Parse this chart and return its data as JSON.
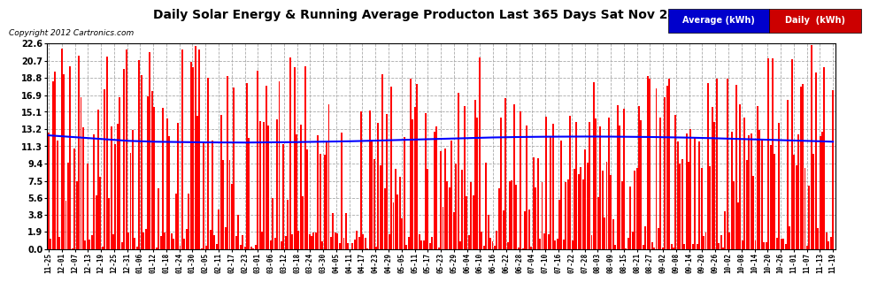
{
  "title": "Daily Solar Energy & Running Average Producton Last 365 Days Sat Nov 24 07:10",
  "copyright": "Copyright 2012 Cartronics.com",
  "yticks": [
    0.0,
    1.9,
    3.8,
    5.6,
    7.5,
    9.4,
    11.3,
    13.2,
    15.1,
    16.9,
    18.8,
    20.7,
    22.6
  ],
  "ylim": [
    0.0,
    22.6
  ],
  "bar_color": "#ff0000",
  "avg_color": "#0000ff",
  "background_color": "#ffffff",
  "plot_bg_color": "#ffffff",
  "legend_avg_bg": "#0000cc",
  "legend_daily_bg": "#cc0000",
  "legend_avg_text": "Average (kWh)",
  "legend_daily_text": "Daily  (kWh)",
  "num_bars": 365,
  "x_labels": [
    "11-25",
    "12-01",
    "12-07",
    "12-13",
    "12-19",
    "12-25",
    "12-31",
    "01-06",
    "01-12",
    "01-18",
    "01-24",
    "01-30",
    "02-05",
    "02-11",
    "02-17",
    "02-23",
    "03-01",
    "03-06",
    "03-12",
    "03-18",
    "03-24",
    "03-30",
    "04-05",
    "04-11",
    "04-17",
    "04-23",
    "04-29",
    "05-05",
    "05-11",
    "05-17",
    "05-23",
    "05-29",
    "06-04",
    "06-10",
    "06-16",
    "06-22",
    "06-28",
    "07-04",
    "07-10",
    "07-16",
    "07-22",
    "07-28",
    "08-03",
    "08-09",
    "08-15",
    "08-21",
    "08-27",
    "09-02",
    "09-08",
    "09-14",
    "09-20",
    "09-26",
    "10-02",
    "10-08",
    "10-14",
    "10-20",
    "10-26",
    "11-01",
    "11-07",
    "11-13",
    "11-19"
  ],
  "avg_line_values": [
    12.5,
    12.4,
    12.3,
    12.2,
    12.1,
    12.0,
    11.9,
    11.85,
    11.8,
    11.78,
    11.76,
    11.74,
    11.73,
    11.72,
    11.71,
    11.71,
    11.72,
    11.73,
    11.74,
    11.76,
    11.78,
    11.8,
    11.82,
    11.85,
    11.88,
    11.92,
    11.96,
    12.0,
    12.04,
    12.08,
    12.12,
    12.16,
    12.2,
    12.24,
    12.27,
    12.3,
    12.32,
    12.34,
    12.35,
    12.36,
    12.37,
    12.37,
    12.37,
    12.36,
    12.35,
    12.34,
    12.32,
    12.3,
    12.28,
    12.25,
    12.22,
    12.18,
    12.14,
    12.1,
    12.06,
    12.02,
    11.98,
    11.94,
    11.9,
    11.85,
    11.8
  ]
}
